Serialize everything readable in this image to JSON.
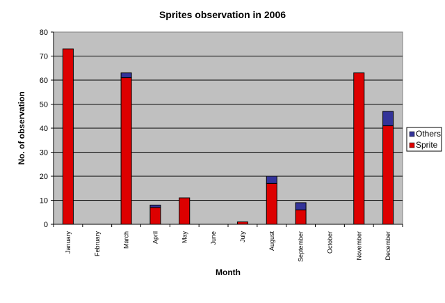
{
  "chart_data": {
    "type": "bar",
    "stacked": true,
    "title": "Sprites observation in 2006",
    "xlabel": "Month",
    "ylabel": "No. of observation",
    "ylim": [
      0,
      80
    ],
    "yticks": [
      "0",
      "10",
      "20",
      "30",
      "40",
      "50",
      "60",
      "70",
      "80"
    ],
    "grid": true,
    "legend_placement": "right",
    "categories": [
      "January",
      "February",
      "March",
      "April",
      "May",
      "June",
      "July",
      "August",
      "September",
      "October",
      "November",
      "December"
    ],
    "series": [
      {
        "name": "Sprite",
        "color": "#dd0000",
        "values": [
          73,
          0,
          61,
          7,
          11,
          0,
          1,
          17,
          6,
          0,
          63,
          41
        ]
      },
      {
        "name": "Others",
        "color": "#333399",
        "values": [
          0,
          0,
          2,
          1,
          0,
          0,
          0,
          3,
          3,
          0,
          0,
          6
        ]
      }
    ],
    "legend": [
      "Others",
      "Sprite"
    ],
    "plot_background": "#c0c0c0"
  }
}
